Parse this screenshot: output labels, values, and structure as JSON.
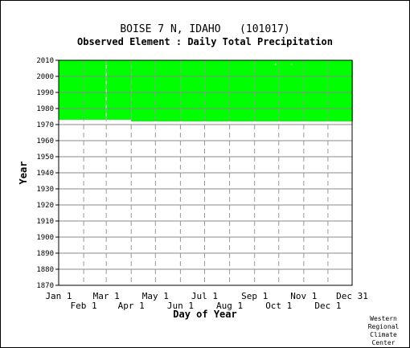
{
  "chart_data": {
    "type": "heatmap",
    "title": "BOISE 7 N, IDAHO   (101017)",
    "subtitle": "Observed Element : Daily Total Precipitation",
    "xlabel": "Day of Year",
    "ylabel": "Year",
    "x_range": [
      1,
      365
    ],
    "ylim": [
      1870,
      2010
    ],
    "y_ticks": [
      1870,
      1880,
      1890,
      1900,
      1910,
      1920,
      1930,
      1940,
      1950,
      1960,
      1970,
      1980,
      1990,
      2000,
      2010
    ],
    "x_ticks_upper": [
      {
        "label": "Jan 1",
        "day": 1
      },
      {
        "label": "Mar 1",
        "day": 60
      },
      {
        "label": "May 1",
        "day": 121
      },
      {
        "label": "Jul 1",
        "day": 182
      },
      {
        "label": "Sep 1",
        "day": 244
      },
      {
        "label": "Nov 1",
        "day": 305
      },
      {
        "label": "Dec 31",
        "day": 365
      }
    ],
    "x_ticks_lower": [
      {
        "label": "Feb 1",
        "day": 32
      },
      {
        "label": "Apr 1",
        "day": 91
      },
      {
        "label": "Jun 1",
        "day": 152
      },
      {
        "label": "Aug 1",
        "day": 213
      },
      {
        "label": "Oct 1",
        "day": 274
      },
      {
        "label": "Dec 1",
        "day": 335
      }
    ],
    "grid": true,
    "data_color": "#00ff00",
    "coverage": [
      {
        "day_start": 1,
        "day_end": 90,
        "year_start": 1973,
        "year_end": 2010
      },
      {
        "day_start": 91,
        "day_end": 365,
        "year_start": 1972,
        "year_end": 2010
      }
    ],
    "gaps": [
      {
        "day": 60,
        "year_start": 1973,
        "year_end": 2010
      },
      {
        "day": 270,
        "year_start": 2007,
        "year_end": 2008
      },
      {
        "day": 290,
        "year_start": 2007,
        "year_end": 2008
      }
    ]
  },
  "credit": [
    "Western",
    "Regional",
    "Climate",
    "Center"
  ]
}
